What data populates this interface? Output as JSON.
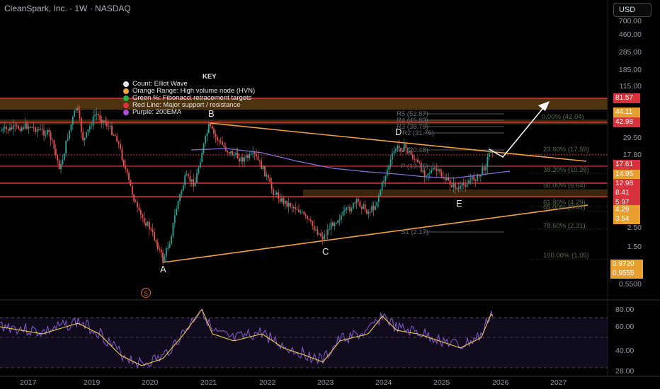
{
  "header": {
    "title": "CleanSpark, Inc. · 1W · NASDAQ",
    "currency": "USD"
  },
  "key": {
    "title": "KEY",
    "items": [
      {
        "label": "Count: Elliot Wave",
        "color": "#e8e8e8"
      },
      {
        "label": "Orange Range: High volume node (HVN)",
        "color": "#f2a33a"
      },
      {
        "label": "Green %: Fibonacci retracement targets",
        "color": "#27b33f"
      },
      {
        "label": "Red Line: Major support / resistance",
        "color": "#e0323a"
      },
      {
        "label": "Purple: 200EMA",
        "color": "#b04ae0"
      }
    ]
  },
  "wave_labels": [
    "A",
    "B",
    "C",
    "D",
    "E"
  ],
  "pivots": [
    "R5 (52.87)",
    "R4 (45.83)",
    "R3 (38.79)",
    "R2 (31.76)",
    "R1 (20.48)",
    "P (13.45)",
    "S1 (2.17)"
  ],
  "fib_levels": [
    "0.00% (42.04)",
    "23.60% (17.59)",
    "38.20% (10.26)",
    "50.00% (6.64)",
    "61.80% (4.29)",
    "65.00% (3.81)",
    "78.60% (2.31)",
    "100.00% (1.05)"
  ],
  "price_axis": [
    "700.00",
    "460.00",
    "285.00",
    "185.00",
    "115.00",
    "29.50",
    "17.80",
    "2.50",
    "1.50",
    "0.5500"
  ],
  "price_tags": [
    {
      "label": "81.57",
      "color": "#d8323c"
    },
    {
      "label": "44.11",
      "color": "#e8a030"
    },
    {
      "label": "42.98",
      "color": "#d8323c"
    },
    {
      "label": "17.61",
      "color": "#d8323c"
    },
    {
      "label": "14.95",
      "color": "#e8a030"
    },
    {
      "label": "12.98",
      "color": "#d8323c"
    },
    {
      "label": "8.41",
      "color": "#d8323c"
    },
    {
      "label": "5.97",
      "color": "#d8323c"
    },
    {
      "label": "4.29",
      "color": "#e8a030"
    },
    {
      "label": "3.54",
      "color": "#e8a030"
    },
    {
      "label": "0.9720",
      "color": "#e8a030"
    },
    {
      "label": "0.9555",
      "color": "#e8a030"
    }
  ],
  "rsi_axis": [
    "80.00",
    "60.00",
    "40.00",
    "28.00"
  ],
  "time_axis": [
    "2017",
    "2019",
    "2020",
    "2021",
    "2022",
    "2023",
    "2024",
    "2025",
    "2026",
    "2027"
  ],
  "marker": "S",
  "colors": {
    "background": "#000000",
    "up": "#26a69a",
    "down": "#ef5350",
    "support": "#e0323a",
    "hvn": "#f2a33a",
    "ema": "#8a6fd6",
    "rsi": "#7e57c2",
    "rsi_ma": "#f2c94c"
  }
}
